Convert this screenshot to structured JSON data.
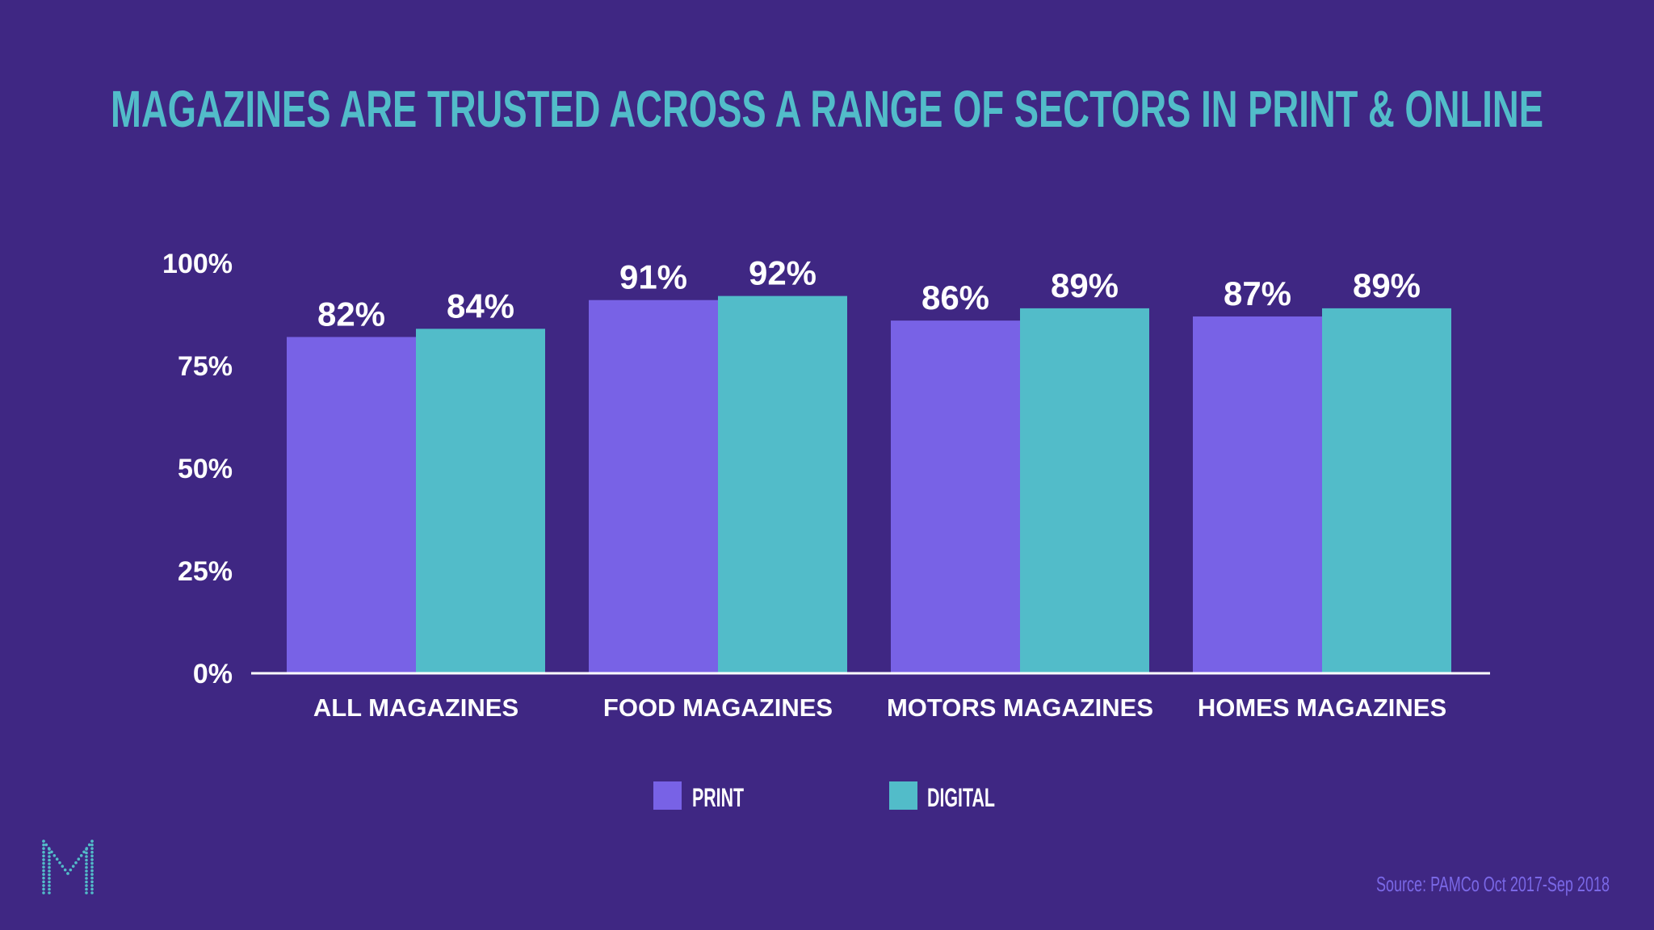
{
  "colors": {
    "background": "#3f2783",
    "title": "#52bcc9",
    "print": "#7862e6",
    "digital": "#52bcc9",
    "axis": "#ffffff",
    "text": "#ffffff",
    "source": "#7a68e6",
    "logo": "#52bcc9"
  },
  "logo": {
    "icon": "m-logo-icon"
  },
  "source": "Source: PAMCo Oct 2017-Sep 2018",
  "chart_data": {
    "type": "bar",
    "title": "MAGAZINES ARE TRUSTED ACROSS A RANGE OF SECTORS IN PRINT & ONLINE",
    "categories": [
      "ALL MAGAZINES",
      "FOOD MAGAZINES",
      "MOTORS MAGAZINES",
      "HOMES MAGAZINES"
    ],
    "series": [
      {
        "name": "PRINT",
        "values": [
          82,
          91,
          86,
          87
        ],
        "labels": [
          "82%",
          "91%",
          "86%",
          "87%"
        ]
      },
      {
        "name": "DIGITAL",
        "values": [
          84,
          92,
          89,
          89
        ],
        "labels": [
          "84%",
          "92%",
          "89%",
          "89%"
        ]
      }
    ],
    "ylim": [
      0,
      100
    ],
    "yticks": [
      {
        "value": 0,
        "label": "0%"
      },
      {
        "value": 25,
        "label": "25%"
      },
      {
        "value": 50,
        "label": "50%"
      },
      {
        "value": 75,
        "label": "75%"
      },
      {
        "value": 100,
        "label": "100%"
      }
    ],
    "xlabel": "",
    "ylabel": "",
    "grid": false,
    "legend_position": "bottom-center"
  }
}
